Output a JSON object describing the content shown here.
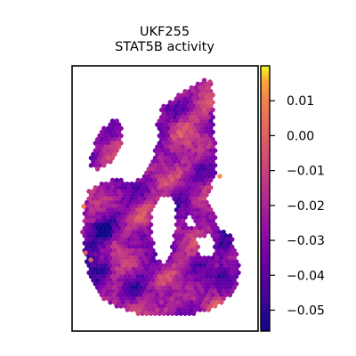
{
  "chart_data": {
    "type": "heatmap",
    "title": "UKF255",
    "subtitle": "STAT5B activity",
    "xlabel": "",
    "ylabel": "",
    "colorbar": {
      "colormap": "plasma",
      "range": [
        -0.056,
        0.02
      ],
      "ticks": [
        0.01,
        0.0,
        -0.01,
        -0.02,
        -0.03,
        -0.04,
        -0.05
      ],
      "tick_labels": [
        "0.01",
        "0.00",
        "−0.01",
        "−0.02",
        "−0.03",
        "−0.04",
        "−0.05"
      ]
    },
    "spots": {
      "description_of_layout": "hexagonal spatial transcriptomics spots forming tissue section",
      "value_mean": -0.025,
      "value_min": -0.055,
      "value_max": 0.018
    }
  }
}
